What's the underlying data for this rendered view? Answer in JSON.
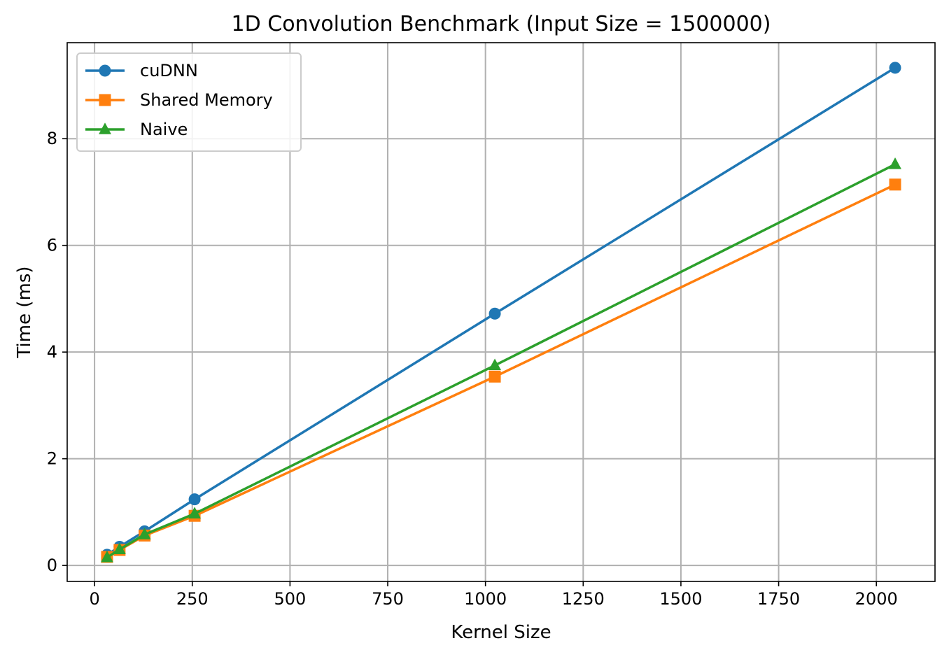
{
  "chart_data": {
    "type": "line",
    "title": "1D Convolution Benchmark (Input Size = 1500000)",
    "xlabel": "Kernel Size",
    "ylabel": "Time (ms)",
    "xlim": [
      -70,
      2150
    ],
    "ylim": [
      -0.3,
      9.8
    ],
    "xticks": [
      0,
      250,
      500,
      750,
      1000,
      1250,
      1500,
      1750,
      2000
    ],
    "xtick_labels": [
      "0",
      "250",
      "500",
      "750",
      "1000",
      "1250",
      "1500",
      "1750",
      "2000"
    ],
    "yticks": [
      0,
      2,
      4,
      6,
      8
    ],
    "ytick_labels": [
      "0",
      "2",
      "4",
      "6",
      "8"
    ],
    "grid": true,
    "legend_position": "top-left",
    "x": [
      32,
      64,
      128,
      256,
      1024,
      2048
    ],
    "series": [
      {
        "name": "cuDNN",
        "marker": "circle",
        "color": "#1f77b4",
        "values": [
          0.2,
          0.35,
          0.64,
          1.24,
          4.72,
          9.33
        ]
      },
      {
        "name": "Shared Memory",
        "marker": "square",
        "color": "#ff7f0e",
        "values": [
          0.16,
          0.29,
          0.56,
          0.93,
          3.54,
          7.14
        ]
      },
      {
        "name": "Naive",
        "marker": "triangle",
        "color": "#2ca02c",
        "values": [
          0.15,
          0.3,
          0.58,
          0.97,
          3.75,
          7.52
        ]
      }
    ]
  }
}
